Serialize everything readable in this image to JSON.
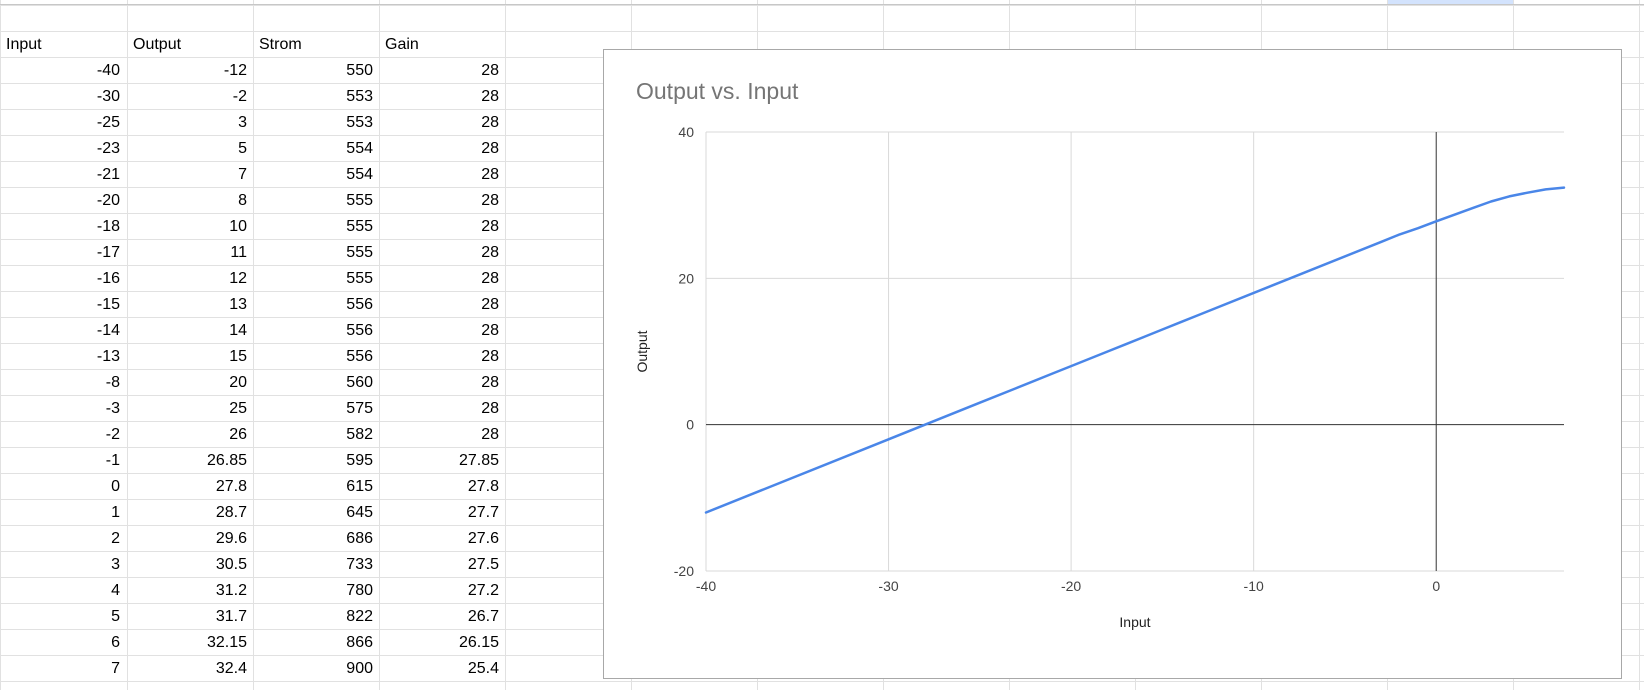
{
  "sheet": {
    "headers": [
      "Input",
      "Output",
      "Strom",
      "Gain"
    ],
    "rows": [
      [
        "-40",
        "-12",
        "550",
        "28"
      ],
      [
        "-30",
        "-2",
        "553",
        "28"
      ],
      [
        "-25",
        "3",
        "553",
        "28"
      ],
      [
        "-23",
        "5",
        "554",
        "28"
      ],
      [
        "-21",
        "7",
        "554",
        "28"
      ],
      [
        "-20",
        "8",
        "555",
        "28"
      ],
      [
        "-18",
        "10",
        "555",
        "28"
      ],
      [
        "-17",
        "11",
        "555",
        "28"
      ],
      [
        "-16",
        "12",
        "555",
        "28"
      ],
      [
        "-15",
        "13",
        "556",
        "28"
      ],
      [
        "-14",
        "14",
        "556",
        "28"
      ],
      [
        "-13",
        "15",
        "556",
        "28"
      ],
      [
        "-8",
        "20",
        "560",
        "28"
      ],
      [
        "-3",
        "25",
        "575",
        "28"
      ],
      [
        "-2",
        "26",
        "582",
        "28"
      ],
      [
        "-1",
        "26.85",
        "595",
        "27.85"
      ],
      [
        "0",
        "27.8",
        "615",
        "27.8"
      ],
      [
        "1",
        "28.7",
        "645",
        "27.7"
      ],
      [
        "2",
        "29.6",
        "686",
        "27.6"
      ],
      [
        "3",
        "30.5",
        "733",
        "27.5"
      ],
      [
        "4",
        "31.2",
        "780",
        "27.2"
      ],
      [
        "5",
        "31.7",
        "822",
        "26.7"
      ],
      [
        "6",
        "32.15",
        "866",
        "26.15"
      ],
      [
        "7",
        "32.4",
        "900",
        "25.4"
      ]
    ]
  },
  "chart_data": {
    "type": "line",
    "title": "Output vs. Input",
    "xlabel": "Input",
    "ylabel": "Output",
    "xlim": [
      -40,
      7
    ],
    "ylim": [
      -20,
      40
    ],
    "x_ticks": [
      -40,
      -30,
      -20,
      -10,
      0
    ],
    "y_ticks": [
      -20,
      0,
      20,
      40
    ],
    "grid": true,
    "legend": "none",
    "x": [
      -40,
      -30,
      -25,
      -23,
      -21,
      -20,
      -18,
      -17,
      -16,
      -15,
      -14,
      -13,
      -8,
      -3,
      -2,
      -1,
      0,
      1,
      2,
      3,
      4,
      5,
      6,
      7
    ],
    "series": [
      {
        "values": [
          -12,
          -2,
          3,
          5,
          7,
          8,
          10,
          11,
          12,
          13,
          14,
          15,
          20,
          25,
          26,
          26.85,
          27.8,
          28.7,
          29.6,
          30.5,
          31.2,
          31.7,
          32.15,
          32.4
        ],
        "color": "#4a86e8"
      }
    ]
  },
  "colors": {
    "gridline": "#e1e1e1",
    "chart_grid": "#d9d9d9",
    "axis": "#333333",
    "selection": "#d3e3fd"
  }
}
